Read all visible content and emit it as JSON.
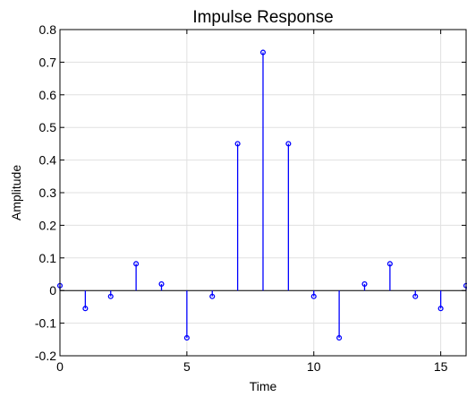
{
  "chart_data": {
    "type": "stem",
    "title": "Impulse Response",
    "xlabel": "Time",
    "ylabel": "Amplitude",
    "xlim": [
      0,
      16
    ],
    "ylim": [
      -0.2,
      0.8
    ],
    "xticks": [
      0,
      5,
      10,
      15
    ],
    "yticks": [
      -0.2,
      -0.1,
      0,
      0.1,
      0.2,
      0.3,
      0.4,
      0.5,
      0.6,
      0.7,
      0.8
    ],
    "grid": true,
    "color": "#0000ff",
    "x": [
      0,
      1,
      2,
      3,
      4,
      5,
      6,
      7,
      8,
      9,
      10,
      11,
      12,
      13,
      14,
      15,
      16
    ],
    "y": [
      0.015,
      -0.055,
      -0.018,
      0.082,
      0.02,
      -0.145,
      -0.018,
      0.45,
      0.73,
      0.45,
      -0.018,
      -0.145,
      0.02,
      0.082,
      -0.018,
      -0.055,
      0.015
    ]
  }
}
